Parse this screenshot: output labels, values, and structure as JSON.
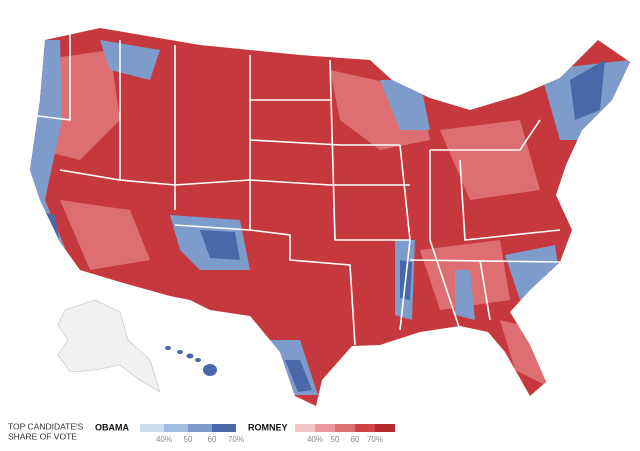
{
  "legend": {
    "title": [
      "TOP CANDIDATE'S",
      "SHARE OF VOTE"
    ],
    "groups": [
      {
        "name": "OBAMA",
        "colors": [
          "#c9ddef",
          "#a3bde0",
          "#7d9bcb",
          "#4a68a8"
        ],
        "labels": [
          "40%",
          "50",
          "60",
          "70%"
        ]
      },
      {
        "name": "ROMNEY",
        "colors": [
          "#f3c4c6",
          "#e9989b",
          "#dd6f72",
          "#cc4448",
          "#b52a2f"
        ],
        "labels": [
          "40%",
          "50",
          "60",
          "70%"
        ]
      }
    ]
  }
}
